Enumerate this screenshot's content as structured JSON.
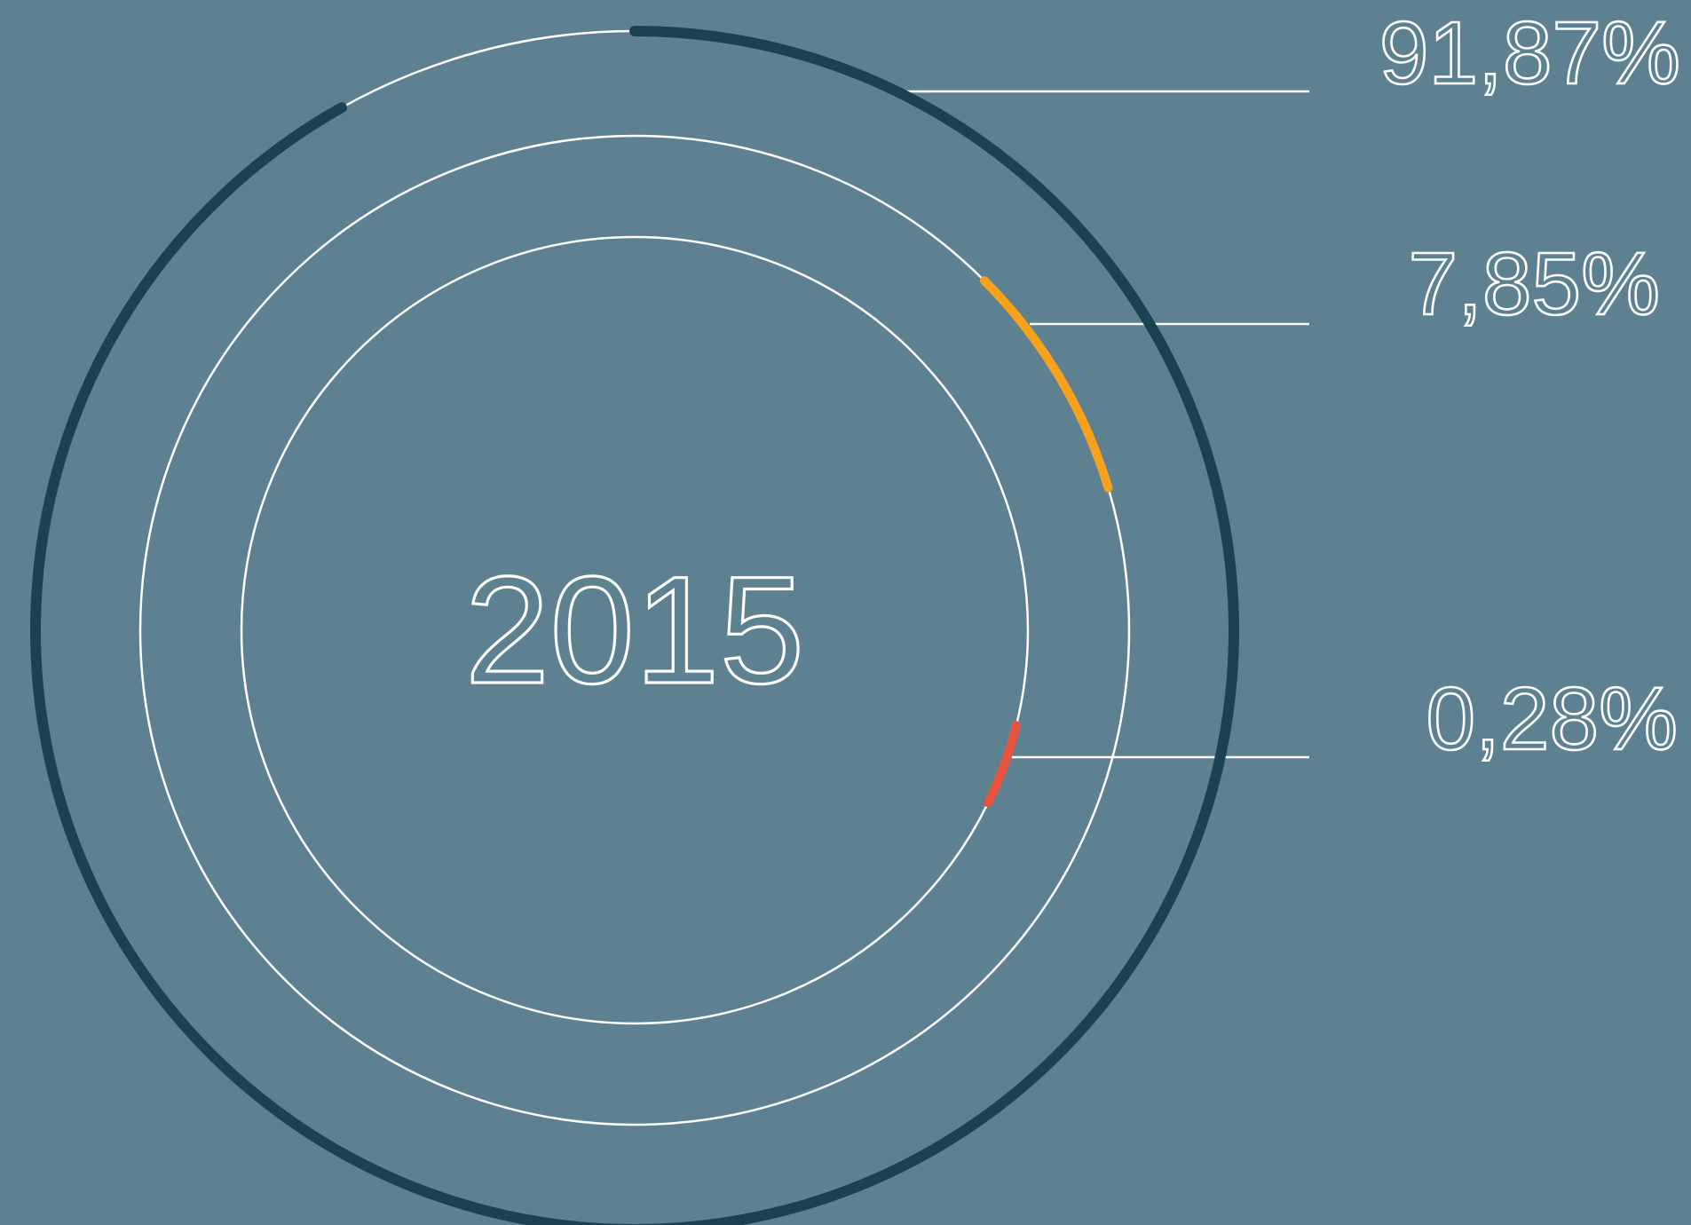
{
  "chart_data": {
    "type": "radial-bar",
    "center_label": "2015",
    "series": [
      {
        "label": "91,87%",
        "value": 91.87,
        "color": "#1b4252"
      },
      {
        "label": "7,85%",
        "value": 7.85,
        "color": "#f7a11d"
      },
      {
        "label": "0,28%",
        "value": 0.28,
        "color": "#e8533f"
      }
    ],
    "colors": {
      "background": "#5d8190",
      "track": "#ffffff",
      "leader": "#ffffff",
      "text": "#ffffff"
    }
  }
}
